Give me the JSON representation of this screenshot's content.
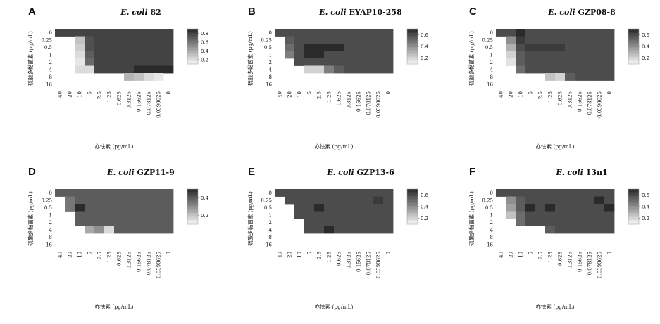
{
  "colors": {
    "low": "#f4f4f4",
    "high": "#2a2a2a",
    "blank": "#ffffff"
  },
  "chart_data": [
    {
      "type": "heatmap",
      "panel": "A",
      "title_species": "E. coli",
      "title_strain": "82",
      "xlabel": "亦怯素 (pg/mL)",
      "ylabel": "硫酸多黏菌素 (μg/mL)",
      "x_ticks": [
        "40",
        "20",
        "10",
        "5",
        "2.5",
        "1.25",
        "0.625",
        "0.3125",
        "0.15625",
        "0.078125",
        "0.0390625",
        "0"
      ],
      "y_ticks": [
        "0",
        "0.25",
        "0.5",
        "1",
        "2",
        "4",
        "8",
        "16"
      ],
      "legend_ticks": [
        "0.8",
        "0.6",
        "0.4",
        "0.2"
      ],
      "legend_range": [
        0.1,
        0.9
      ],
      "z": [
        [
          0.8,
          0.8,
          0.8,
          0.8,
          0.8,
          0.8,
          0.8,
          0.8,
          0.8,
          0.8,
          0.8,
          0.8
        ],
        [
          null,
          null,
          0.3,
          0.75,
          0.8,
          0.8,
          0.8,
          0.8,
          0.8,
          0.8,
          0.8,
          0.8
        ],
        [
          null,
          null,
          0.25,
          0.75,
          0.8,
          0.8,
          0.8,
          0.8,
          0.8,
          0.8,
          0.8,
          0.8
        ],
        [
          null,
          null,
          0.2,
          0.7,
          0.8,
          0.8,
          0.8,
          0.8,
          0.8,
          0.8,
          0.8,
          0.8
        ],
        [
          null,
          null,
          0.15,
          0.65,
          0.8,
          0.8,
          0.8,
          0.8,
          0.8,
          0.8,
          0.8,
          0.8
        ],
        [
          null,
          null,
          0.2,
          0.2,
          0.8,
          0.8,
          0.8,
          0.8,
          0.9,
          0.9,
          0.9,
          0.9
        ],
        [
          null,
          null,
          null,
          null,
          null,
          null,
          null,
          0.35,
          0.3,
          0.2,
          0.15,
          null
        ],
        [
          null,
          null,
          null,
          null,
          null,
          null,
          null,
          null,
          null,
          null,
          null,
          null
        ]
      ]
    },
    {
      "type": "heatmap",
      "panel": "B",
      "title_species": "E. coli",
      "title_strain": "EYAP10-258",
      "xlabel": "亦怯素 (pg/mL)",
      "ylabel": "硫酸多黏菌素 (μg/mL)",
      "x_ticks": [
        "40",
        "20",
        "10",
        "5",
        "2.5",
        "1.25",
        "0.625",
        "0.3125",
        "0.15625",
        "0.078125",
        "0.0390625",
        "0"
      ],
      "y_ticks": [
        "0",
        "0.25",
        "0.5",
        "1",
        "2",
        "4",
        "8",
        "16"
      ],
      "legend_ticks": [
        "0.6",
        "0.4",
        "0.2"
      ],
      "legend_range": [
        0.1,
        0.7
      ],
      "z": [
        [
          0.6,
          0.6,
          0.6,
          0.6,
          0.6,
          0.6,
          0.6,
          0.6,
          0.6,
          0.6,
          0.6,
          0.6
        ],
        [
          null,
          0.55,
          0.6,
          0.6,
          0.6,
          0.6,
          0.6,
          0.6,
          0.6,
          0.6,
          0.6,
          0.6
        ],
        [
          null,
          0.5,
          0.6,
          0.7,
          0.7,
          0.7,
          0.7,
          0.6,
          0.6,
          0.6,
          0.6,
          0.6
        ],
        [
          null,
          0.45,
          0.6,
          0.7,
          0.7,
          0.6,
          0.6,
          0.6,
          0.6,
          0.6,
          0.6,
          0.6
        ],
        [
          null,
          null,
          0.6,
          0.6,
          0.6,
          0.6,
          0.6,
          0.6,
          0.6,
          0.6,
          0.6,
          0.6
        ],
        [
          null,
          null,
          null,
          0.2,
          0.2,
          0.45,
          0.55,
          0.6,
          0.6,
          0.6,
          0.6,
          0.6
        ],
        [
          null,
          null,
          null,
          null,
          null,
          null,
          null,
          null,
          null,
          null,
          null,
          null
        ],
        [
          null,
          null,
          null,
          null,
          null,
          null,
          null,
          null,
          null,
          null,
          null,
          null
        ]
      ]
    },
    {
      "type": "heatmap",
      "panel": "C",
      "title_species": "E. coli",
      "title_strain": "GZP08-8",
      "xlabel": "亦怯素 (pg/mL)",
      "ylabel": "硫酸多黏菌素 (μg/mL)",
      "x_ticks": [
        "40",
        "20",
        "10",
        "5",
        "2.5",
        "1.25",
        "0.625",
        "0.3125",
        "0.15625",
        "0.078125",
        "0.0390625",
        "0"
      ],
      "y_ticks": [
        "0",
        "0.25",
        "0.5",
        "1",
        "2",
        "4",
        "8",
        "16"
      ],
      "legend_ticks": [
        "0.6",
        "0.4",
        "0.2"
      ],
      "legend_range": [
        0.1,
        0.7
      ],
      "z": [
        [
          0.6,
          0.6,
          0.7,
          0.6,
          0.6,
          0.6,
          0.6,
          0.6,
          0.6,
          0.6,
          0.6,
          0.6
        ],
        [
          null,
          0.4,
          0.65,
          0.6,
          0.6,
          0.6,
          0.6,
          0.6,
          0.6,
          0.6,
          0.6,
          0.6
        ],
        [
          null,
          0.3,
          0.6,
          0.65,
          0.65,
          0.65,
          0.65,
          0.6,
          0.6,
          0.6,
          0.6,
          0.6
        ],
        [
          null,
          0.2,
          0.55,
          0.6,
          0.6,
          0.6,
          0.6,
          0.6,
          0.6,
          0.6,
          0.6,
          0.6
        ],
        [
          null,
          0.15,
          0.55,
          0.6,
          0.6,
          0.6,
          0.6,
          0.6,
          0.6,
          0.6,
          0.6,
          0.6
        ],
        [
          null,
          null,
          0.5,
          0.6,
          0.6,
          0.6,
          0.6,
          0.6,
          0.6,
          0.6,
          0.6,
          0.6
        ],
        [
          null,
          null,
          null,
          null,
          null,
          0.25,
          0.2,
          0.55,
          0.6,
          0.6,
          0.6,
          0.6
        ],
        [
          null,
          null,
          null,
          null,
          null,
          null,
          null,
          null,
          null,
          null,
          null,
          null
        ]
      ]
    },
    {
      "type": "heatmap",
      "panel": "D",
      "title_species": "E. coli",
      "title_strain": "GZP11-9",
      "xlabel": "亦怯素 (pg/mL)",
      "ylabel": "硫酸多黏菌素 (μg/mL)",
      "x_ticks": [
        "40",
        "20",
        "10",
        "5",
        "2.5",
        "1.25",
        "0.625",
        "0.3125",
        "0.15625",
        "0.078125",
        "0.0390625",
        "0"
      ],
      "y_ticks": [
        "0",
        "0.25",
        "0.5",
        "1",
        "2",
        "4",
        "8",
        "16"
      ],
      "legend_ticks": [
        "0.4",
        "0.2"
      ],
      "legend_range": [
        0.1,
        0.5
      ],
      "z": [
        [
          0.4,
          0.4,
          0.4,
          0.4,
          0.4,
          0.4,
          0.4,
          0.4,
          0.4,
          0.4,
          0.4,
          0.4
        ],
        [
          null,
          0.35,
          0.4,
          0.4,
          0.4,
          0.4,
          0.4,
          0.4,
          0.4,
          0.4,
          0.4,
          0.4
        ],
        [
          null,
          0.35,
          0.5,
          0.4,
          0.4,
          0.4,
          0.4,
          0.4,
          0.4,
          0.4,
          0.4,
          0.4
        ],
        [
          null,
          null,
          0.4,
          0.4,
          0.4,
          0.4,
          0.4,
          0.4,
          0.4,
          0.4,
          0.4,
          0.4
        ],
        [
          null,
          null,
          0.4,
          0.4,
          0.4,
          0.4,
          0.4,
          0.4,
          0.4,
          0.4,
          0.4,
          0.4
        ],
        [
          null,
          null,
          null,
          0.25,
          0.3,
          0.15,
          0.4,
          0.4,
          0.4,
          0.4,
          0.4,
          0.4
        ],
        [
          null,
          null,
          null,
          null,
          null,
          null,
          null,
          null,
          null,
          null,
          null,
          null
        ],
        [
          null,
          null,
          null,
          null,
          null,
          null,
          null,
          null,
          null,
          null,
          null,
          null
        ]
      ]
    },
    {
      "type": "heatmap",
      "panel": "E",
      "title_species": "E. coli",
      "title_strain": "GZP13-6",
      "xlabel": "亦怯素 (pg/mL)",
      "ylabel": "硫酸多黏菌素 (μg/mL)",
      "x_ticks": [
        "40",
        "20",
        "10",
        "5",
        "2.5",
        "1.25",
        "0.625",
        "0.3125",
        "0.15625",
        "0.078125",
        "0.0390625",
        "0"
      ],
      "y_ticks": [
        "0",
        "0.25",
        "0.5",
        "1",
        "2",
        "4",
        "8",
        "16"
      ],
      "legend_ticks": [
        "0.6",
        "0.4",
        "0.2"
      ],
      "legend_range": [
        0.1,
        0.7
      ],
      "z": [
        [
          0.6,
          0.6,
          0.6,
          0.6,
          0.6,
          0.6,
          0.6,
          0.6,
          0.6,
          0.6,
          0.6,
          0.6
        ],
        [
          null,
          0.6,
          0.6,
          0.6,
          0.6,
          0.6,
          0.6,
          0.6,
          0.6,
          0.6,
          0.65,
          0.6
        ],
        [
          null,
          null,
          0.6,
          0.6,
          0.7,
          0.6,
          0.6,
          0.6,
          0.6,
          0.6,
          0.6,
          0.6
        ],
        [
          null,
          null,
          0.6,
          0.6,
          0.6,
          0.6,
          0.6,
          0.6,
          0.6,
          0.6,
          0.6,
          0.6
        ],
        [
          null,
          null,
          null,
          0.6,
          0.6,
          0.6,
          0.6,
          0.6,
          0.6,
          0.6,
          0.6,
          0.6
        ],
        [
          null,
          null,
          null,
          0.6,
          0.6,
          0.7,
          0.6,
          0.6,
          0.6,
          0.6,
          0.6,
          0.6
        ],
        [
          null,
          null,
          null,
          null,
          null,
          null,
          null,
          null,
          null,
          null,
          null,
          null
        ],
        [
          null,
          null,
          null,
          null,
          null,
          null,
          null,
          null,
          null,
          null,
          null,
          null
        ]
      ]
    },
    {
      "type": "heatmap",
      "panel": "F",
      "title_species": "E. coli",
      "title_strain": "13n1",
      "xlabel": "亦怯素 (pg/mL)",
      "ylabel": "硫酸多黏菌素 (μg/mL)",
      "x_ticks": [
        "40",
        "20",
        "10",
        "5",
        "2.5",
        "1.25",
        "0.625",
        "0.3125",
        "0.15625",
        "0.078125",
        "0.0390625",
        "0"
      ],
      "y_ticks": [
        "0",
        "0.25",
        "0.5",
        "1",
        "2",
        "4",
        "8",
        "16"
      ],
      "legend_ticks": [
        "0.6",
        "0.4",
        "0.2"
      ],
      "legend_range": [
        0.1,
        0.7
      ],
      "z": [
        [
          0.6,
          0.6,
          0.6,
          0.6,
          0.6,
          0.6,
          0.6,
          0.6,
          0.6,
          0.6,
          0.6,
          0.6
        ],
        [
          null,
          0.4,
          0.55,
          0.6,
          0.6,
          0.6,
          0.6,
          0.6,
          0.6,
          0.6,
          0.7,
          0.6
        ],
        [
          null,
          0.35,
          0.55,
          0.7,
          0.6,
          0.7,
          0.6,
          0.6,
          0.6,
          0.6,
          0.6,
          0.7
        ],
        [
          null,
          0.25,
          0.5,
          0.6,
          0.6,
          0.6,
          0.6,
          0.6,
          0.6,
          0.6,
          0.6,
          0.6
        ],
        [
          null,
          null,
          0.5,
          0.6,
          0.6,
          0.6,
          0.6,
          0.6,
          0.6,
          0.6,
          0.6,
          0.6
        ],
        [
          null,
          null,
          null,
          null,
          null,
          0.55,
          0.6,
          0.6,
          0.6,
          0.6,
          0.6,
          0.6
        ],
        [
          null,
          null,
          null,
          null,
          null,
          null,
          null,
          null,
          null,
          null,
          null,
          null
        ],
        [
          null,
          null,
          null,
          null,
          null,
          null,
          null,
          null,
          null,
          null,
          null,
          null
        ]
      ]
    }
  ]
}
